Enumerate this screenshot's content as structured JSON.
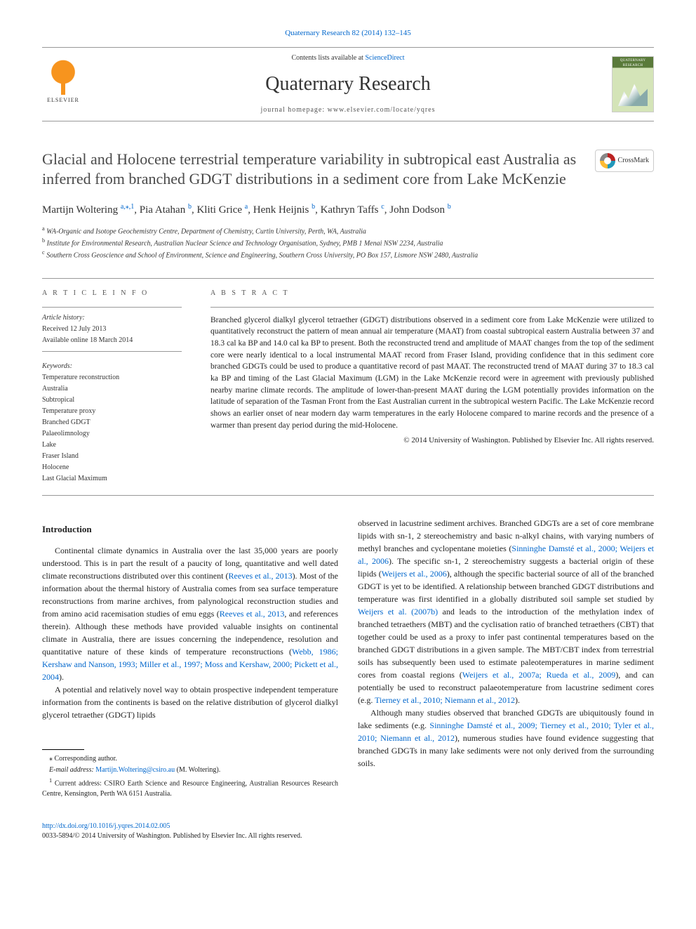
{
  "citation": "Quaternary Research 82 (2014) 132–145",
  "header": {
    "contents_prefix": "Contents lists available at ",
    "contents_link": "ScienceDirect",
    "journal_name": "Quaternary Research",
    "homepage_prefix": "journal homepage: ",
    "homepage_url": "www.elsevier.com/locate/yqres",
    "elsevier_label": "ELSEVIER",
    "cover_title": "QUATERNARY RESEARCH"
  },
  "crossmark_label": "CrossMark",
  "title": "Glacial and Holocene terrestrial temperature variability in subtropical east Australia as inferred from branched GDGT distributions in a sediment core from Lake McKenzie",
  "authors_html": "Martijn Woltering <sup>a,</sup><span class=\"corr\"><sup>⁎</sup></span><sup>,1</sup>, Pia Atahan <sup>b</sup>, Kliti Grice <sup>a</sup>, Henk Heijnis <sup>b</sup>, Kathryn Taffs <sup>c</sup>, John Dodson <sup>b</sup>",
  "affiliations": [
    {
      "sup": "a",
      "text": "WA-Organic and Isotope Geochemistry Centre, Department of Chemistry, Curtin University, Perth, WA, Australia"
    },
    {
      "sup": "b",
      "text": "Institute for Environmental Research, Australian Nuclear Science and Technology Organisation, Sydney, PMB 1 Menai NSW 2234, Australia"
    },
    {
      "sup": "c",
      "text": "Southern Cross Geoscience and School of Environment, Science and Engineering, Southern Cross University, PO Box 157, Lismore NSW 2480, Australia"
    }
  ],
  "article_info": {
    "heading": "A R T I C L E   I N F O",
    "history_label": "Article history:",
    "received": "Received 12 July 2013",
    "available": "Available online 18 March 2014",
    "keywords_label": "Keywords:",
    "keywords": [
      "Temperature reconstruction",
      "Australia",
      "Subtropical",
      "Temperature proxy",
      "Branched GDGT",
      "Palaeolimnology",
      "Lake",
      "Fraser Island",
      "Holocene",
      "Last Glacial Maximum"
    ]
  },
  "abstract": {
    "heading": "A B S T R A C T",
    "body": "Branched glycerol dialkyl glycerol tetraether (GDGT) distributions observed in a sediment core from Lake McKenzie were utilized to quantitatively reconstruct the pattern of mean annual air temperature (MAAT) from coastal subtropical eastern Australia between 37 and 18.3 cal ka BP and 14.0 cal ka BP to present. Both the reconstructed trend and amplitude of MAAT changes from the top of the sediment core were nearly identical to a local instrumental MAAT record from Fraser Island, providing confidence that in this sediment core branched GDGTs could be used to produce a quantitative record of past MAAT. The reconstructed trend of MAAT during 37 to 18.3 cal ka BP and timing of the Last Glacial Maximum (LGM) in the Lake McKenzie record were in agreement with previously published nearby marine climate records. The amplitude of lower-than-present MAAT during the LGM potentially provides information on the latitude of separation of the Tasman Front from the East Australian current in the subtropical western Pacific. The Lake McKenzie record shows an earlier onset of near modern day warm temperatures in the early Holocene compared to marine records and the presence of a warmer than present day period during the mid-Holocene.",
    "copyright": "© 2014 University of Washington. Published by Elsevier Inc. All rights reserved."
  },
  "intro": {
    "heading": "Introduction",
    "p1_a": "Continental climate dynamics in Australia over the last 35,000 years are poorly understood. This is in part the result of a paucity of long, quantitative and well dated climate reconstructions distributed over this continent (",
    "p1_link1": "Reeves et al., 2013",
    "p1_b": "). Most of the information about the thermal history of Australia comes from sea surface temperature reconstructions from marine archives, from palynological reconstruction studies and from amino acid racemisation studies of emu eggs (",
    "p1_link2": "Reeves et al., 2013",
    "p1_c": ", and references therein). Although these methods have provided valuable insights on continental climate in Australia, there are issues concerning the independence, resolution and quantitative nature of these kinds of temperature reconstructions (",
    "p1_link3": "Webb, 1986; Kershaw and Nanson, 1993; Miller et al., 1997; Moss and Kershaw, 2000; Pickett et al., 2004",
    "p1_d": ").",
    "p2": "A potential and relatively novel way to obtain prospective independent temperature information from the continents is based on the relative distribution of glycerol dialkyl glycerol tetraether (GDGT) lipids",
    "p3_a": "observed in lacustrine sediment archives. Branched GDGTs are a set of core membrane lipids with sn-1, 2 stereochemistry and basic n-alkyl chains, with varying numbers of methyl branches and cyclopentane moieties (",
    "p3_link1": "Sinninghe Damsté et al., 2000; Weijers et al., 2006",
    "p3_b": "). The specific sn-1, 2 stereochemistry suggests a bacterial origin of these lipids (",
    "p3_link2": "Weijers et al., 2006",
    "p3_c": "), although the specific bacterial source of all of the branched GDGT is yet to be identified. A relationship between branched GDGT distributions and temperature was first identified in a globally distributed soil sample set studied by ",
    "p3_link3": "Weijers et al. (2007b)",
    "p3_d": " and leads to the introduction of the methylation index of branched tetraethers (MBT) and the cyclisation ratio of branched tetraethers (CBT) that together could be used as a proxy to infer past continental temperatures based on the branched GDGT distributions in a given sample. The MBT/CBT index from terrestrial soils has subsequently been used to estimate paleotemperatures in marine sediment cores from coastal regions (",
    "p3_link4": "Weijers et al., 2007a; Rueda et al., 2009",
    "p3_e": "), and can potentially be used to reconstruct palaeotemperature from lacustrine sediment cores (e.g. ",
    "p3_link5": "Tierney et al., 2010; Niemann et al., 2012",
    "p3_f": ").",
    "p4_a": "Although many studies observed that branched GDGTs are ubiquitously found in lake sediments (e.g. ",
    "p4_link1": "Sinninghe Damsté et al., 2009; Tierney et al., 2010; Tyler et al., 2010; Niemann et al., 2012",
    "p4_b": "), numerous studies have found evidence suggesting that branched GDGTs in many lake sediments were not only derived from the surrounding soils."
  },
  "footnotes": {
    "corr_label": "⁎  Corresponding author.",
    "email_label": "E-mail address: ",
    "email": "Martijn.Woltering@csiro.au",
    "email_who": " (M. Woltering).",
    "note1_sup": "1",
    "note1": "  Current address: CSIRO Earth Science and Resource Engineering, Australian Resources Research Centre, Kensington, Perth WA 6151 Australia."
  },
  "footer": {
    "doi": "http://dx.doi.org/10.1016/j.yqres.2014.02.005",
    "issn_line": "0033-5894/© 2014 University of Washington. Published by Elsevier Inc. All rights reserved."
  },
  "colors": {
    "link": "#0066cc",
    "elsevier_orange": "#f7941e",
    "text": "#222222",
    "rule": "#999999"
  }
}
